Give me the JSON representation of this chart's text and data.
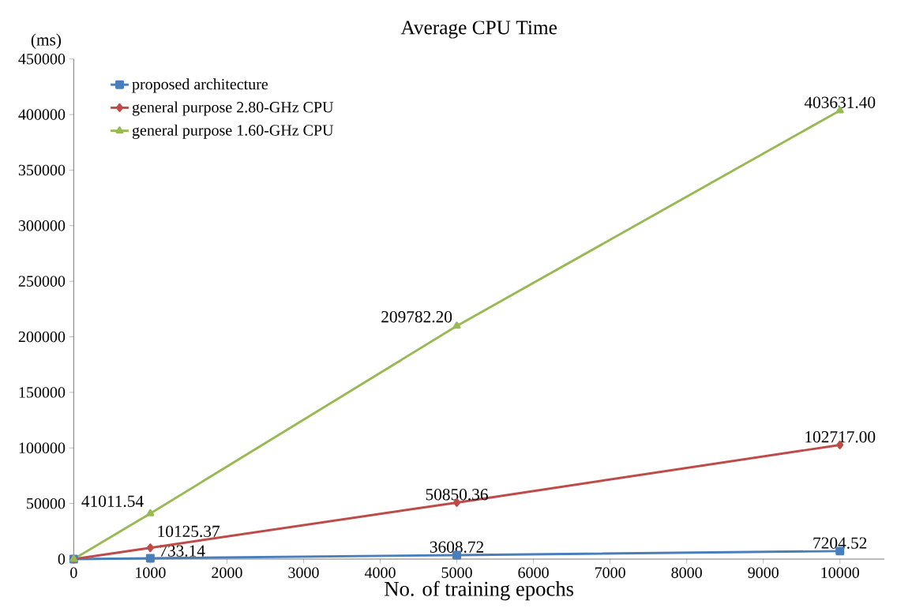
{
  "chart_data": {
    "type": "line",
    "title": "Average CPU Time",
    "xlabel": "No. of training epochs",
    "ylabel": "(ms)",
    "x": [
      0,
      1000,
      5000,
      10000
    ],
    "series": [
      {
        "name": "proposed architecture",
        "color": "#4a7ebb",
        "marker": "square",
        "values": [
          0,
          733.14,
          3608.72,
          7204.52
        ],
        "value_labels": [
          null,
          "733.14",
          "3608.72",
          "7204.52"
        ]
      },
      {
        "name": "general purpose 2.80-GHz CPU",
        "color": "#be4b48",
        "marker": "diamond",
        "values": [
          0,
          10125.37,
          50850.36,
          102717.0
        ],
        "value_labels": [
          null,
          "10125.37",
          "50850.36",
          "102717.00"
        ]
      },
      {
        "name": "general purpose 1.60-GHz CPU",
        "color": "#98b954",
        "marker": "triangle",
        "values": [
          0,
          41011.54,
          209782.2,
          403631.4
        ],
        "value_labels": [
          null,
          "41011.54",
          "209782.20",
          "403631.40"
        ]
      }
    ],
    "xlim": [
      0,
      10580
    ],
    "xticks": [
      0,
      1000,
      2000,
      3000,
      4000,
      5000,
      6000,
      7000,
      8000,
      9000,
      10000
    ],
    "ylim": [
      0,
      450000
    ],
    "yticks": [
      0,
      50000,
      100000,
      150000,
      200000,
      250000,
      300000,
      350000,
      400000,
      450000
    ],
    "grid": false,
    "legend": "top left"
  }
}
